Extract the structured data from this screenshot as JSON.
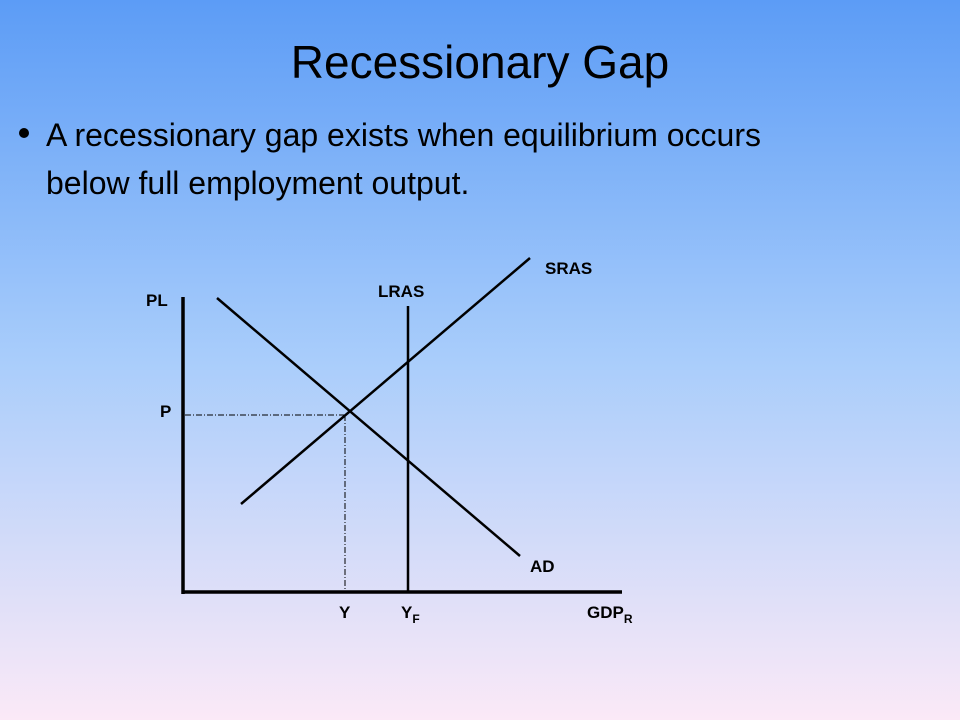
{
  "header": {
    "title": "Recessionary Gap"
  },
  "body": {
    "bullet_lines": [
      "A recessionary gap exists when equilibrium occurs",
      "below full employment output."
    ]
  },
  "diagram": {
    "y_axis_label": "PL",
    "price_label": "P",
    "curves": {
      "lras": "LRAS",
      "sras": "SRAS",
      "ad": "AD"
    },
    "output_label": "Y",
    "full_output_label": {
      "text": "Y",
      "sub": "F"
    },
    "x_axis_label": {
      "text": "GDP",
      "sub": "R"
    }
  }
}
